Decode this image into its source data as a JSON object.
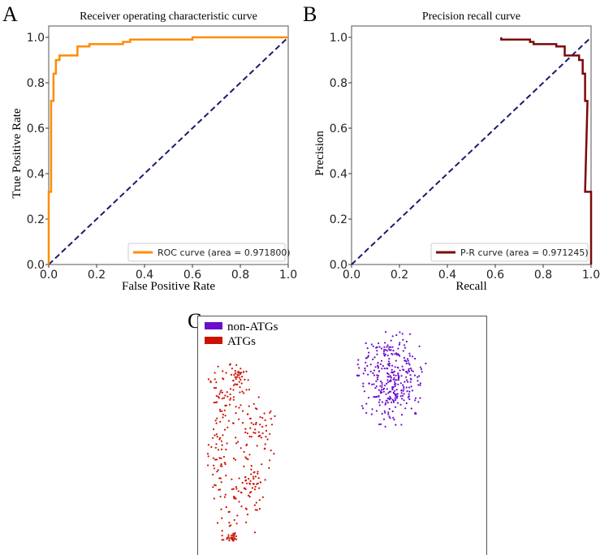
{
  "chart_data": [
    {
      "panel": "A",
      "type": "line",
      "title": "Receiver operating characteristic curve",
      "xlabel": "False Positive Rate",
      "ylabel": "True Positive Rate",
      "xlim": [
        0,
        1.0
      ],
      "ylim": [
        0,
        1.05
      ],
      "xticks": [
        "0.0",
        "0.2",
        "0.4",
        "0.6",
        "0.8",
        "1.0"
      ],
      "yticks": [
        "0.0",
        "0.2",
        "0.4",
        "0.6",
        "0.8",
        "1.0"
      ],
      "legend_position": "bottom-right",
      "series": [
        {
          "name": "ROC curve (area = 0.971800)",
          "color": "#ff8c00",
          "style": "solid",
          "x": [
            0,
            0,
            0.01,
            0.01,
            0.02,
            0.02,
            0.03,
            0.03,
            0.045,
            0.045,
            0.12,
            0.12,
            0.17,
            0.17,
            0.31,
            0.31,
            0.34,
            0.34,
            0.6,
            0.6,
            1.0
          ],
          "y": [
            0,
            0.32,
            0.32,
            0.72,
            0.72,
            0.84,
            0.84,
            0.9,
            0.9,
            0.92,
            0.92,
            0.96,
            0.96,
            0.97,
            0.97,
            0.98,
            0.98,
            0.99,
            0.99,
            1.0,
            1.0
          ]
        },
        {
          "name": "chance",
          "color": "#1a1a6e",
          "style": "dashed",
          "x": [
            0,
            1
          ],
          "y": [
            0,
            1
          ]
        }
      ]
    },
    {
      "panel": "B",
      "type": "line",
      "title": "Precision recall curve",
      "xlabel": "Recall",
      "ylabel": "Precision",
      "xlim": [
        0,
        1.0
      ],
      "ylim": [
        0,
        1.05
      ],
      "xticks": [
        "0.0",
        "0.2",
        "0.4",
        "0.6",
        "0.8",
        "1.0"
      ],
      "yticks": [
        "0.0",
        "0.2",
        "0.4",
        "0.6",
        "0.8",
        "1.0"
      ],
      "legend_position": "bottom-right",
      "series": [
        {
          "name": "P-R curve (area = 0.971245)",
          "color": "#7a0a0a",
          "style": "solid",
          "x": [
            0.625,
            0.625,
            0.745,
            0.745,
            0.76,
            0.76,
            0.855,
            0.855,
            0.89,
            0.89,
            0.95,
            0.95,
            0.965,
            0.965,
            0.975,
            0.975,
            0.985,
            0.975,
            1.0,
            1.0
          ],
          "y": [
            1.0,
            0.99,
            0.99,
            0.98,
            0.98,
            0.97,
            0.97,
            0.96,
            0.96,
            0.92,
            0.92,
            0.9,
            0.9,
            0.84,
            0.84,
            0.72,
            0.72,
            0.32,
            0.32,
            0.0
          ]
        },
        {
          "name": "chance",
          "color": "#1a1a6e",
          "style": "dashed",
          "x": [
            0,
            1
          ],
          "y": [
            0,
            1
          ]
        }
      ]
    },
    {
      "panel": "C",
      "type": "scatter",
      "title": "",
      "legend_position": "top-left",
      "series": [
        {
          "name": "non-ATGs",
          "color": "#6a0dcc",
          "count": 330
        },
        {
          "name": "ATGs",
          "color": "#cc1100",
          "count": 330
        }
      ]
    }
  ]
}
